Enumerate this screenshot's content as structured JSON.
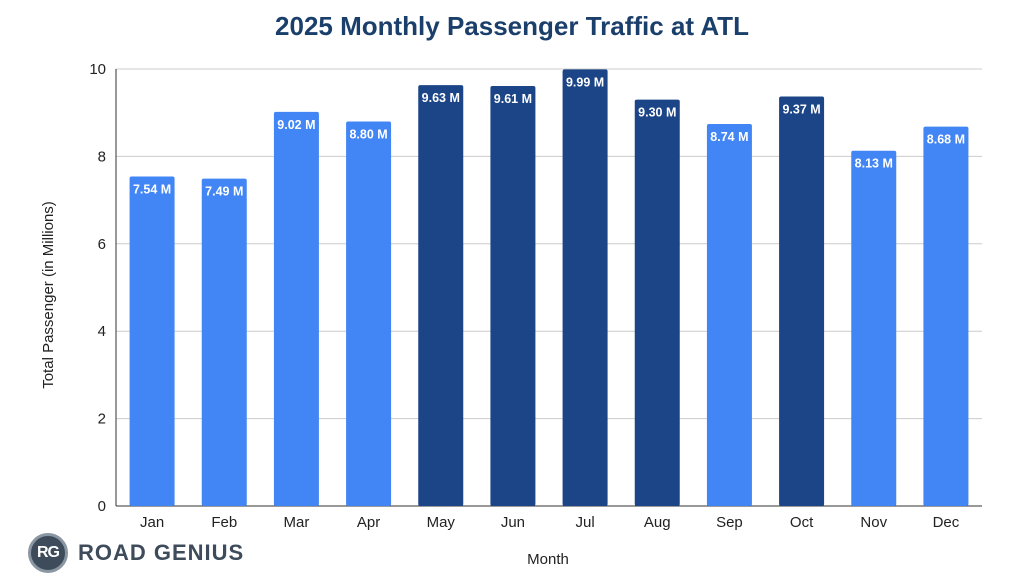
{
  "chart_data": {
    "type": "bar",
    "title": "2025 Monthly Passenger Traffic at ATL",
    "xlabel": "Month",
    "ylabel": "Total Passenger (in Millions)",
    "ylim": [
      0,
      10
    ],
    "yticks": [
      0,
      2,
      4,
      6,
      8,
      10
    ],
    "grid": true,
    "categories": [
      "Jan",
      "Feb",
      "Mar",
      "Apr",
      "May",
      "Jun",
      "Jul",
      "Aug",
      "Sep",
      "Oct",
      "Nov",
      "Dec"
    ],
    "values": [
      7.54,
      7.49,
      9.02,
      8.8,
      9.63,
      9.61,
      9.99,
      9.3,
      8.74,
      9.37,
      8.13,
      8.68
    ],
    "data_labels": [
      "7.54 M",
      "7.49 M",
      "9.02 M",
      "8.80 M",
      "9.63 M",
      "9.61 M",
      "9.99 M",
      "9.30 M",
      "8.74 M",
      "9.37 M",
      "8.13 M",
      "8.68 M"
    ],
    "bar_colors": [
      "#4285f4",
      "#4285f4",
      "#4285f4",
      "#4285f4",
      "#1c4587",
      "#1c4587",
      "#1c4587",
      "#1c4587",
      "#4285f4",
      "#1c4587",
      "#4285f4",
      "#4285f4"
    ]
  },
  "branding": {
    "badge": "RG",
    "name": "ROAD GENIUS"
  },
  "colors": {
    "title": "#1b3f6b",
    "grid": "#cccccc",
    "axis": "#333333"
  }
}
